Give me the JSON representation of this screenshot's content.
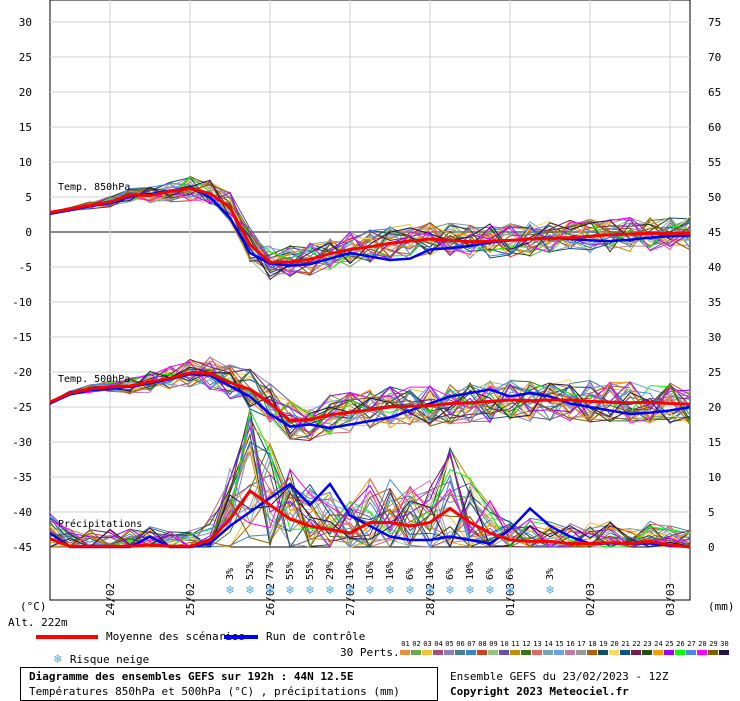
{
  "chart_data": {
    "type": "line",
    "title": "Diagramme des ensembles GEFS sur 192h : 44N 12.5E",
    "subtitle": "Températures 850hPa et 500hPa (°C) , précipitations (mm)",
    "left_axis_unit": "(°C)",
    "right_axis_unit": "(mm)",
    "altitude": "Alt. 222m",
    "left_ticks": [
      30,
      25,
      20,
      15,
      10,
      5,
      0,
      -5,
      -10,
      -15,
      -20,
      -25,
      -30,
      -35,
      -40,
      -45
    ],
    "right_ticks": [
      75,
      70,
      65,
      60,
      55,
      50,
      45,
      40,
      35,
      30,
      25,
      20,
      15,
      10,
      5,
      0
    ],
    "ylim_temp": [
      -45,
      30
    ],
    "ylim_precip": [
      0,
      75
    ],
    "x_ticks": [
      "24/02",
      "25/02",
      "26/02",
      "27/02",
      "28/02",
      "01/03",
      "02/03",
      "03/03"
    ],
    "x_hours": [
      0,
      6,
      12,
      18,
      24,
      30,
      36,
      42,
      48,
      54,
      60,
      66,
      72,
      78,
      84,
      90,
      96,
      102,
      108,
      114,
      120,
      126,
      132,
      138,
      144,
      150,
      156,
      162,
      168,
      174,
      180,
      186,
      192
    ],
    "labels": {
      "t850": "Temp. 850hPa",
      "t500": "Temp. 500hPa",
      "precip": "Précipitations"
    },
    "series": [
      {
        "name": "Moyenne des scénarios",
        "color": "#ff0000",
        "t850": [
          2.8,
          3.3,
          3.8,
          4.3,
          5.3,
          5.2,
          5.8,
          6.2,
          5.5,
          3.5,
          -1.8,
          -4.3,
          -4.3,
          -3.9,
          -3.1,
          -2.5,
          -2.1,
          -1.6,
          -1.3,
          -1.0,
          -1.2,
          -1.4,
          -1.3,
          -1.2,
          -1.0,
          -0.9,
          -0.8,
          -0.6,
          -0.4,
          -0.3,
          -0.2,
          -0.2,
          -0.2
        ],
        "t500": [
          -24.3,
          -23.0,
          -22.4,
          -22.1,
          -22.0,
          -21.4,
          -20.9,
          -20.1,
          -20.2,
          -21.5,
          -22.5,
          -24.5,
          -26.9,
          -26.8,
          -26.1,
          -25.8,
          -25.4,
          -25.0,
          -24.9,
          -24.8,
          -24.5,
          -24.4,
          -24.2,
          -24.0,
          -24.1,
          -24.0,
          -24.0,
          -24.2,
          -24.3,
          -24.4,
          -24.3,
          -24.5,
          -24.6
        ],
        "precip": [
          1.2,
          0.1,
          0.1,
          0.1,
          0.1,
          0.3,
          0.1,
          0.1,
          1.0,
          4.0,
          8.0,
          6.0,
          4.0,
          3.0,
          2.5,
          2.0,
          3.5,
          3.5,
          3.0,
          3.5,
          5.5,
          3.5,
          2.0,
          1.0,
          0.8,
          0.8,
          0.5,
          0.5,
          0.6,
          0.5,
          0.8,
          0.3,
          0.0
        ]
      },
      {
        "name": "Run de contrôle",
        "color": "#0000ff",
        "t850": [
          2.6,
          3.1,
          3.7,
          4.1,
          5.1,
          5.4,
          5.9,
          6.3,
          5.0,
          2.0,
          -3.0,
          -4.5,
          -4.8,
          -4.6,
          -3.8,
          -3.0,
          -3.5,
          -4.0,
          -3.8,
          -2.5,
          -2.3,
          -2.0,
          -1.5,
          -1.2,
          -1.0,
          -0.8,
          -1.0,
          -1.2,
          -1.3,
          -1.1,
          -0.8,
          -0.6,
          -0.5
        ],
        "t500": [
          -24.5,
          -23.2,
          -22.6,
          -22.3,
          -22.1,
          -21.6,
          -21.0,
          -20.3,
          -20.5,
          -22.0,
          -23.5,
          -26.0,
          -27.8,
          -27.5,
          -28.0,
          -27.5,
          -27.0,
          -26.5,
          -25.5,
          -24.5,
          -23.5,
          -23.0,
          -22.5,
          -23.5,
          -23.0,
          -23.5,
          -24.5,
          -25.0,
          -25.5,
          -26.0,
          -25.8,
          -25.5,
          -25.0
        ],
        "precip": [
          2.0,
          0.0,
          0.0,
          0.0,
          0.0,
          1.5,
          0.0,
          0.0,
          0.5,
          3.0,
          5.0,
          7.0,
          9.0,
          6.0,
          9.0,
          4.5,
          3.0,
          1.5,
          1.0,
          1.0,
          1.5,
          1.0,
          0.5,
          2.5,
          5.5,
          3.0,
          1.5,
          0.5,
          0.5,
          0.5,
          0.5,
          0.2,
          0.0
        ]
      }
    ],
    "snow_risk": [
      {
        "hour": 54,
        "pct": "3%"
      },
      {
        "hour": 60,
        "pct": "52%"
      },
      {
        "hour": 66,
        "pct": "77%"
      },
      {
        "hour": 72,
        "pct": "55%"
      },
      {
        "hour": 78,
        "pct": "55%"
      },
      {
        "hour": 84,
        "pct": "29%"
      },
      {
        "hour": 90,
        "pct": "19%"
      },
      {
        "hour": 96,
        "pct": "16%"
      },
      {
        "hour": 102,
        "pct": "16%"
      },
      {
        "hour": 108,
        "pct": "6%"
      },
      {
        "hour": 114,
        "pct": "10%"
      },
      {
        "hour": 120,
        "pct": "6%"
      },
      {
        "hour": 126,
        "pct": "10%"
      },
      {
        "hour": 132,
        "pct": "6%"
      },
      {
        "hour": 138,
        "pct": "6%"
      },
      {
        "hour": 150,
        "pct": "3%"
      }
    ],
    "grid": true
  },
  "legend": {
    "mean_label": "Moyenne des scénarios",
    "control_label": "Run de contrôle",
    "snow_label": "Risque neige",
    "perts_label": "30 Perts.",
    "pert_numbers": [
      "01",
      "02",
      "03",
      "04",
      "05",
      "06",
      "07",
      "08",
      "09",
      "10",
      "11",
      "12",
      "13",
      "14",
      "15",
      "16",
      "17",
      "18",
      "19",
      "20",
      "21",
      "22",
      "23",
      "24",
      "25",
      "26",
      "27",
      "28",
      "29",
      "30"
    ],
    "pert_colors": [
      "#e69138",
      "#6aa84f",
      "#f1c232",
      "#a64d79",
      "#8e7cc3",
      "#45818e",
      "#3d85c6",
      "#cc4125",
      "#93c47d",
      "#674ea7",
      "#bf9000",
      "#38761d",
      "#e06666",
      "#76a5af",
      "#6d9eeb",
      "#c27ba0",
      "#999999",
      "#b45f06",
      "#134f5c",
      "#ffd966",
      "#0b5394",
      "#741b47",
      "#274e13",
      "#ff9900",
      "#9900ff",
      "#00ff00",
      "#4a86e8",
      "#ff00ff",
      "#7f6000",
      "#20124d"
    ]
  },
  "footer": {
    "title": "Diagramme des ensembles GEFS sur 192h : 44N 12.5E",
    "subtitle": "Températures 850hPa et 500hPa (°C) , précipitations (mm)",
    "run_info": "Ensemble GEFS du 23/02/2023 - 12Z",
    "copyright": "Copyright 2023 Meteociel.fr"
  }
}
